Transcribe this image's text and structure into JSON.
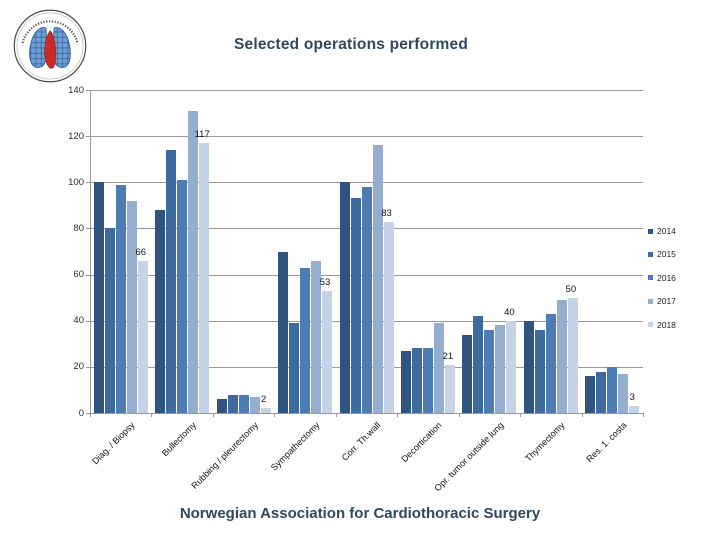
{
  "header": {
    "title": "Selected operations performed"
  },
  "footer": {
    "text": "Norwegian Association for Cardiothoracic Surgery"
  },
  "colors": {
    "accent_text": "#2e4960",
    "gridline": "#9a9a9a"
  },
  "chart_data": {
    "type": "bar",
    "title": "Selected operations performed",
    "xlabel": "",
    "ylabel": "",
    "ylim": [
      0,
      140
    ],
    "y_ticks": [
      0,
      20,
      40,
      60,
      80,
      100,
      120,
      140
    ],
    "grid": true,
    "legend_position": "right",
    "categories": [
      "Diag. / Biopsy",
      "Bullectomy",
      "Rubbing / pleurectomy",
      "Sympathectomy",
      "Corr. Th.wall",
      "Decortication",
      "Opr. tumor outside lung",
      "Thymectomy",
      "Res. 1. costa"
    ],
    "series": [
      {
        "name": "2014",
        "color": "#2e547f",
        "values": [
          100,
          88,
          6,
          70,
          100,
          27,
          34,
          40,
          16
        ]
      },
      {
        "name": "2015",
        "color": "#3d6b9e",
        "values": [
          80,
          114,
          8,
          39,
          93,
          28,
          42,
          36,
          18
        ]
      },
      {
        "name": "2016",
        "color": "#4c7cb3",
        "values": [
          99,
          101,
          8,
          63,
          98,
          28,
          36,
          43,
          20
        ]
      },
      {
        "name": "2017",
        "color": "#95adcf",
        "values": [
          92,
          131,
          7,
          66,
          116,
          39,
          38,
          49,
          17
        ]
      },
      {
        "name": "2018",
        "color": "#c6d2e6",
        "values": [
          66,
          117,
          2,
          53,
          83,
          21,
          40,
          50,
          3
        ],
        "data_labels": true
      }
    ]
  }
}
